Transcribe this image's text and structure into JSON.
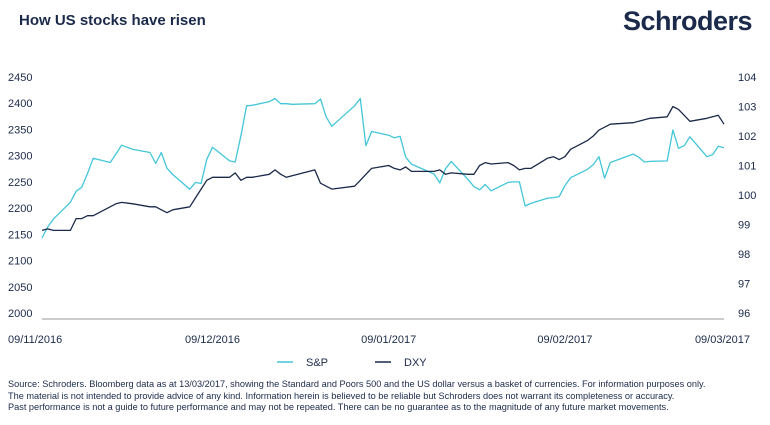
{
  "header": {
    "title": "How US stocks have risen",
    "brand": "Schroders"
  },
  "colors": {
    "sp": "#43c6d9",
    "dxy": "#1b2a4a",
    "text": "#1b2a4a",
    "gridline": "#999999"
  },
  "chart_data": {
    "type": "line",
    "x_tick_labels": [
      "09/11/2016",
      "09/12/2016",
      "09/01/2017",
      "09/02/2017",
      "09/03/2017"
    ],
    "x_range": [
      "2016-11-09",
      "2017-03-09"
    ],
    "y_left": {
      "range": [
        2000,
        2450
      ],
      "ticks": [
        2000,
        2050,
        2100,
        2150,
        2200,
        2250,
        2300,
        2350,
        2400,
        2450
      ]
    },
    "y_right": {
      "range": [
        96,
        104
      ],
      "ticks": [
        96,
        97,
        98,
        99,
        100,
        101,
        102,
        103,
        104
      ]
    },
    "grid": false,
    "legend_position": "bottom",
    "series": [
      {
        "name": "S&P",
        "axis": "left",
        "points": [
          [
            "2016-11-09",
            2143
          ],
          [
            "2016-11-10",
            2164
          ],
          [
            "2016-11-11",
            2179
          ],
          [
            "2016-11-14",
            2211
          ],
          [
            "2016-11-15",
            2232
          ],
          [
            "2016-11-16",
            2240
          ],
          [
            "2016-11-17",
            2266
          ],
          [
            "2016-11-18",
            2295
          ],
          [
            "2016-11-21",
            2287
          ],
          [
            "2016-11-22",
            2303
          ],
          [
            "2016-11-23",
            2320
          ],
          [
            "2016-11-25",
            2312
          ],
          [
            "2016-11-28",
            2306
          ],
          [
            "2016-11-29",
            2285
          ],
          [
            "2016-11-30",
            2306
          ],
          [
            "2016-12-01",
            2276
          ],
          [
            "2016-12-02",
            2264
          ],
          [
            "2016-12-05",
            2236
          ],
          [
            "2016-12-06",
            2249
          ],
          [
            "2016-12-07",
            2247
          ],
          [
            "2016-12-08",
            2293
          ],
          [
            "2016-12-09",
            2316
          ],
          [
            "2016-12-12",
            2290
          ],
          [
            "2016-12-13",
            2288
          ],
          [
            "2016-12-14",
            2338
          ],
          [
            "2016-12-15",
            2395
          ],
          [
            "2016-12-16",
            2396
          ],
          [
            "2016-12-19",
            2403
          ],
          [
            "2016-12-20",
            2409
          ],
          [
            "2016-12-21",
            2399
          ],
          [
            "2016-12-22",
            2399
          ],
          [
            "2016-12-23",
            2398
          ],
          [
            "2016-12-27",
            2399
          ],
          [
            "2016-12-28",
            2408
          ],
          [
            "2016-12-29",
            2374
          ],
          [
            "2016-12-30",
            2356
          ],
          [
            "2017-01-03",
            2395
          ],
          [
            "2017-01-04",
            2409
          ],
          [
            "2017-01-05",
            2319
          ],
          [
            "2017-01-06",
            2346
          ],
          [
            "2017-01-09",
            2339
          ],
          [
            "2017-01-10",
            2334
          ],
          [
            "2017-01-11",
            2337
          ],
          [
            "2017-01-12",
            2297
          ],
          [
            "2017-01-13",
            2284
          ],
          [
            "2017-01-17",
            2265
          ],
          [
            "2017-01-18",
            2248
          ],
          [
            "2017-01-19",
            2275
          ],
          [
            "2017-01-20",
            2289
          ],
          [
            "2017-01-23",
            2254
          ],
          [
            "2017-01-24",
            2241
          ],
          [
            "2017-01-25",
            2235
          ],
          [
            "2017-01-26",
            2245
          ],
          [
            "2017-01-27",
            2233
          ],
          [
            "2017-01-30",
            2249
          ],
          [
            "2017-01-31",
            2250
          ],
          [
            "2017-02-01",
            2250
          ],
          [
            "2017-02-02",
            2204
          ],
          [
            "2017-02-03",
            2209
          ],
          [
            "2017-02-06",
            2219
          ],
          [
            "2017-02-07",
            2220
          ],
          [
            "2017-02-08",
            2222
          ],
          [
            "2017-02-09",
            2243
          ],
          [
            "2017-02-10",
            2258
          ],
          [
            "2017-02-13",
            2274
          ],
          [
            "2017-02-14",
            2283
          ],
          [
            "2017-02-15",
            2298
          ],
          [
            "2017-02-16",
            2257
          ],
          [
            "2017-02-17",
            2287
          ],
          [
            "2017-02-21",
            2303
          ],
          [
            "2017-02-22",
            2297
          ],
          [
            "2017-02-23",
            2288
          ],
          [
            "2017-02-24",
            2289
          ],
          [
            "2017-02-27",
            2290
          ],
          [
            "2017-02-28",
            2349
          ],
          [
            "2017-03-01",
            2314
          ],
          [
            "2017-03-02",
            2319
          ],
          [
            "2017-03-03",
            2336
          ],
          [
            "2017-03-06",
            2298
          ],
          [
            "2017-03-07",
            2302
          ],
          [
            "2017-03-08",
            2318
          ],
          [
            "2017-03-09",
            2315
          ]
        ]
      },
      {
        "name": "DXY",
        "axis": "right",
        "points": [
          [
            "2016-11-09",
            98.8
          ],
          [
            "2016-11-10",
            98.85
          ],
          [
            "2016-11-11",
            98.8
          ],
          [
            "2016-11-14",
            98.8
          ],
          [
            "2016-11-15",
            99.2
          ],
          [
            "2016-11-16",
            99.2
          ],
          [
            "2016-11-17",
            99.3
          ],
          [
            "2016-11-18",
            99.3
          ],
          [
            "2016-11-21",
            99.6
          ],
          [
            "2016-11-22",
            99.7
          ],
          [
            "2016-11-23",
            99.75
          ],
          [
            "2016-11-25",
            99.7
          ],
          [
            "2016-11-28",
            99.6
          ],
          [
            "2016-11-29",
            99.6
          ],
          [
            "2016-11-30",
            99.5
          ],
          [
            "2016-12-01",
            99.4
          ],
          [
            "2016-12-02",
            99.5
          ],
          [
            "2016-12-05",
            99.6
          ],
          [
            "2016-12-06",
            99.9
          ],
          [
            "2016-12-07",
            100.2
          ],
          [
            "2016-12-08",
            100.5
          ],
          [
            "2016-12-09",
            100.6
          ],
          [
            "2016-12-12",
            100.6
          ],
          [
            "2016-12-13",
            100.75
          ],
          [
            "2016-12-14",
            100.5
          ],
          [
            "2016-12-15",
            100.6
          ],
          [
            "2016-12-16",
            100.6
          ],
          [
            "2016-12-19",
            100.7
          ],
          [
            "2016-12-20",
            100.85
          ],
          [
            "2016-12-21",
            100.7
          ],
          [
            "2016-12-22",
            100.6
          ],
          [
            "2016-12-23",
            100.65
          ],
          [
            "2016-12-27",
            100.85
          ],
          [
            "2016-12-28",
            100.4
          ],
          [
            "2016-12-29",
            100.3
          ],
          [
            "2016-12-30",
            100.2
          ],
          [
            "2017-01-03",
            100.3
          ],
          [
            "2017-01-04",
            100.5
          ],
          [
            "2017-01-05",
            100.7
          ],
          [
            "2017-01-06",
            100.9
          ],
          [
            "2017-01-09",
            101.0
          ],
          [
            "2017-01-10",
            100.9
          ],
          [
            "2017-01-11",
            100.85
          ],
          [
            "2017-01-12",
            100.95
          ],
          [
            "2017-01-13",
            100.8
          ],
          [
            "2017-01-17",
            100.8
          ],
          [
            "2017-01-18",
            100.85
          ],
          [
            "2017-01-19",
            100.7
          ],
          [
            "2017-01-20",
            100.75
          ],
          [
            "2017-01-23",
            100.7
          ],
          [
            "2017-01-24",
            100.7
          ],
          [
            "2017-01-25",
            101.0
          ],
          [
            "2017-01-26",
            101.1
          ],
          [
            "2017-01-27",
            101.05
          ],
          [
            "2017-01-30",
            101.1
          ],
          [
            "2017-01-31",
            101.0
          ],
          [
            "2017-02-01",
            100.85
          ],
          [
            "2017-02-02",
            100.9
          ],
          [
            "2017-02-03",
            100.9
          ],
          [
            "2017-02-06",
            101.25
          ],
          [
            "2017-02-07",
            101.3
          ],
          [
            "2017-02-08",
            101.2
          ],
          [
            "2017-02-09",
            101.3
          ],
          [
            "2017-02-10",
            101.55
          ],
          [
            "2017-02-13",
            101.85
          ],
          [
            "2017-02-14",
            102.0
          ],
          [
            "2017-02-15",
            102.2
          ],
          [
            "2017-02-16",
            102.3
          ],
          [
            "2017-02-17",
            102.4
          ],
          [
            "2017-02-21",
            102.45
          ],
          [
            "2017-02-22",
            102.5
          ],
          [
            "2017-02-23",
            102.55
          ],
          [
            "2017-02-24",
            102.6
          ],
          [
            "2017-02-27",
            102.65
          ],
          [
            "2017-02-28",
            103.0
          ],
          [
            "2017-03-01",
            102.9
          ],
          [
            "2017-03-02",
            102.7
          ],
          [
            "2017-03-03",
            102.5
          ],
          [
            "2017-03-06",
            102.6
          ],
          [
            "2017-03-07",
            102.65
          ],
          [
            "2017-03-08",
            102.7
          ],
          [
            "2017-03-09",
            102.4
          ]
        ]
      }
    ]
  },
  "legend": [
    {
      "label": "S&P",
      "key": "sp"
    },
    {
      "label": "DXY",
      "key": "dxy"
    }
  ],
  "footnote": [
    "Source: Schroders. Bloomberg data as at 13/03/2017, showing the Standard and Poors 500 and the US dollar versus a basket of currencies. For information purposes only.",
    "The material is not intended to provide advice of any kind. Information herein is believed to be reliable but Schroders does not warrant its completeness or accuracy.",
    "Past performance is not a guide to future performance and may not be repeated. There can be no guarantee as to the magnitude of any future market movements."
  ]
}
